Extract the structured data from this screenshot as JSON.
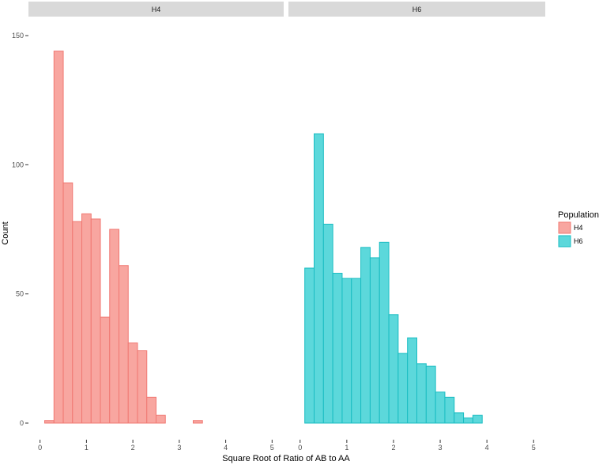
{
  "chart_data": {
    "type": "bar",
    "subtype": "histogram",
    "xlabel": "Square Root of Ratio of AB to AA",
    "ylabel": "Count",
    "xlim": [
      -0.25,
      5.25
    ],
    "ylim": [
      0,
      150
    ],
    "x_ticks": [
      0,
      1,
      2,
      3,
      4,
      5
    ],
    "y_ticks": [
      0,
      50,
      100,
      150
    ],
    "bin_width": 0.2,
    "bin_centers": [
      0,
      0.2,
      0.4,
      0.6,
      0.8,
      1.0,
      1.2,
      1.4,
      1.6,
      1.8,
      2.0,
      2.2,
      2.4,
      2.6,
      2.8,
      3.0,
      3.2,
      3.4,
      3.6,
      3.8,
      4.0,
      4.2,
      4.4,
      4.6,
      4.8,
      5.0
    ],
    "legend": {
      "title": "Population",
      "position": "right",
      "entries": [
        "H4",
        "H6"
      ]
    },
    "panels": [
      {
        "label": "H4",
        "fill": "#F8A6A0",
        "stroke": "#F07872",
        "values": [
          0,
          1,
          144,
          93,
          78,
          81,
          79,
          41,
          75,
          61,
          31,
          28,
          10,
          3,
          0,
          0,
          0,
          1,
          0,
          0,
          0,
          0,
          0,
          0,
          0,
          0
        ]
      },
      {
        "label": "H6",
        "fill": "#5CD8DB",
        "stroke": "#19BCC2",
        "values": [
          0,
          60,
          112,
          77,
          58,
          56,
          56,
          68,
          64,
          70,
          42,
          27,
          33,
          23,
          22,
          12,
          10,
          4,
          2,
          3,
          0,
          0,
          0,
          0,
          0,
          0
        ]
      }
    ]
  }
}
